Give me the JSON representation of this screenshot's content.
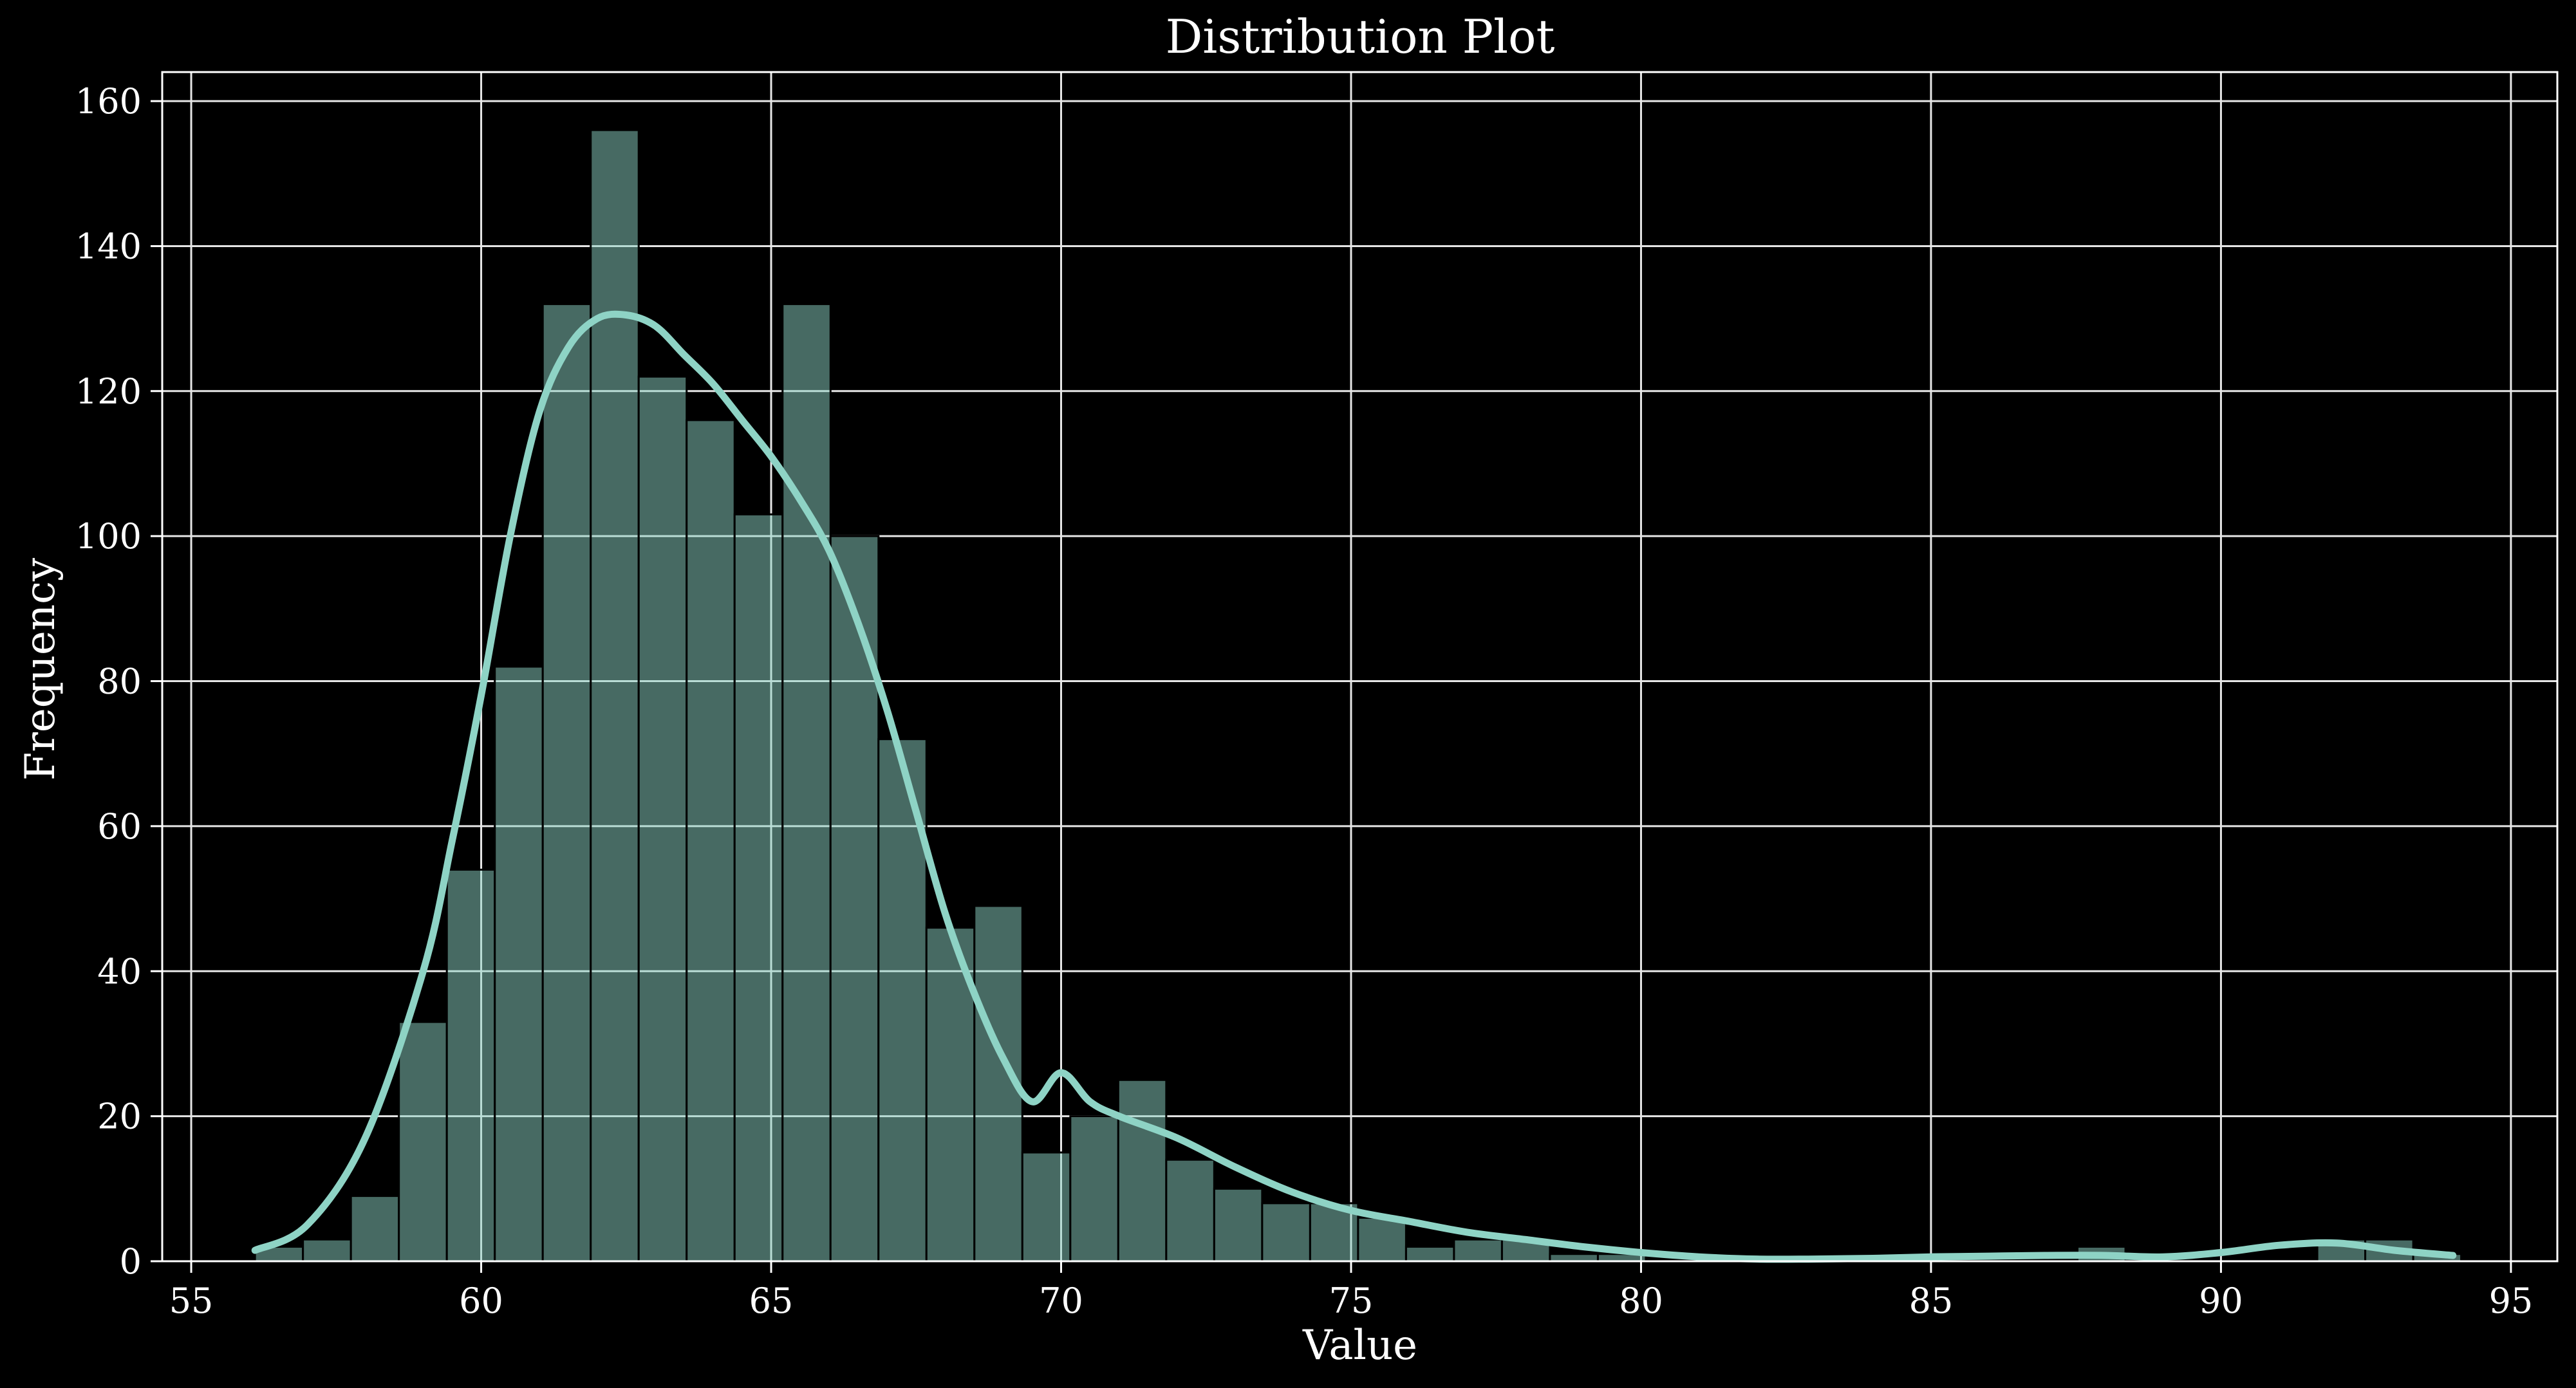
{
  "chart_data": {
    "type": "histogram",
    "title": "Distribution Plot",
    "xlabel": "Value",
    "ylabel": "Frequency",
    "xlim": [
      54.5,
      95.8
    ],
    "ylim": [
      0,
      164
    ],
    "xticks": [
      55,
      60,
      65,
      70,
      75,
      80,
      85,
      90,
      95
    ],
    "yticks": [
      0,
      20,
      40,
      60,
      80,
      100,
      120,
      140,
      160
    ],
    "grid": true,
    "bar_color": "#8ed3c5",
    "bar_opacity": 0.5,
    "bar_edge_color": "#000000",
    "kde_color": "#8ed3c5",
    "background": "#000000",
    "bins": {
      "start": 56.1,
      "width": 0.827,
      "counts": [
        2,
        3,
        9,
        33,
        54,
        82,
        132,
        156,
        122,
        116,
        103,
        132,
        100,
        72,
        46,
        49,
        15,
        20,
        25,
        14,
        10,
        8,
        8,
        6,
        2,
        3,
        3,
        1,
        1,
        0,
        0,
        0,
        0,
        0,
        0,
        0,
        0,
        0,
        2,
        0,
        0,
        0,
        0,
        3,
        3,
        1
      ]
    },
    "kde": {
      "x": [
        56.1,
        57,
        58,
        59,
        59.5,
        60,
        60.5,
        61,
        61.5,
        62,
        62.5,
        63,
        63.5,
        64,
        64.5,
        65,
        65.5,
        66,
        66.5,
        67,
        67.5,
        68,
        68.5,
        69,
        69.5,
        70,
        70.5,
        71,
        72,
        73,
        74,
        75,
        76,
        77,
        78,
        79,
        80,
        81,
        82,
        83,
        84,
        85,
        86,
        87,
        88,
        89,
        90,
        91,
        92,
        93,
        94
      ],
      "y": [
        1.5,
        5,
        17,
        40,
        58,
        78,
        100,
        117,
        126,
        130,
        130.5,
        129,
        125,
        121,
        116,
        111,
        105,
        98,
        88,
        76,
        62,
        48,
        37,
        28,
        22,
        26,
        22,
        20,
        17,
        13,
        9.5,
        7,
        5.5,
        4,
        3,
        2,
        1.2,
        0.6,
        0.3,
        0.3,
        0.4,
        0.6,
        0.7,
        0.8,
        0.8,
        0.6,
        1.2,
        2.2,
        2.5,
        1.5,
        0.8
      ]
    }
  }
}
